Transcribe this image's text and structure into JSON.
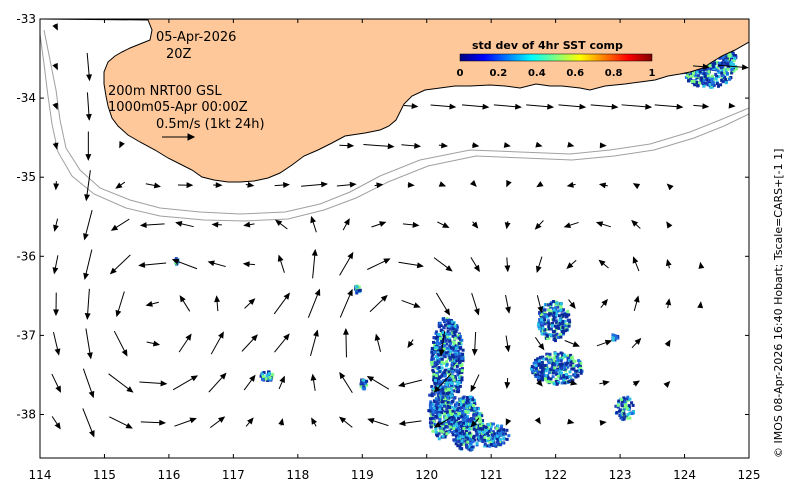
{
  "map": {
    "date_label": "05-Apr-2026",
    "time_label": "20Z",
    "line1": "200m  NRT00 GSL",
    "line2": "1000m05-Apr 00:00Z",
    "scale_label": "0.5m/s (1kt 24h)",
    "credit": "© IMOS 08-Apr-2026 16:40 Hobart; Tscale=CARS+[-1 1]"
  },
  "colorbar": {
    "title": "std dev of 4hr SST comp",
    "ticks": [
      "0",
      "0.2",
      "0.4",
      "0.6",
      "0.8",
      "1"
    ],
    "colors": [
      "#00007f",
      "#0000ff",
      "#007fff",
      "#00ffff",
      "#7fff7f",
      "#ffff00",
      "#ff7f00",
      "#ff0000",
      "#7f0000"
    ]
  },
  "axes": {
    "x_ticks": [
      "114",
      "115",
      "116",
      "117",
      "118",
      "119",
      "120",
      "121",
      "122",
      "123",
      "124",
      "125"
    ],
    "y_ticks": [
      "-33",
      "-34",
      "-35",
      "-36",
      "-37",
      "-38"
    ],
    "x_range": [
      114,
      125
    ],
    "y_range": [
      -38.55,
      -33
    ]
  },
  "colors": {
    "land": "#fec89a",
    "isobath": "#a0a0a0",
    "sst_dark": "#0a2a9c",
    "sst_mid": "#1e6fe0",
    "sst_light": "#2bc2e8"
  },
  "symbols": {
    "arrow": "current-arrow"
  }
}
